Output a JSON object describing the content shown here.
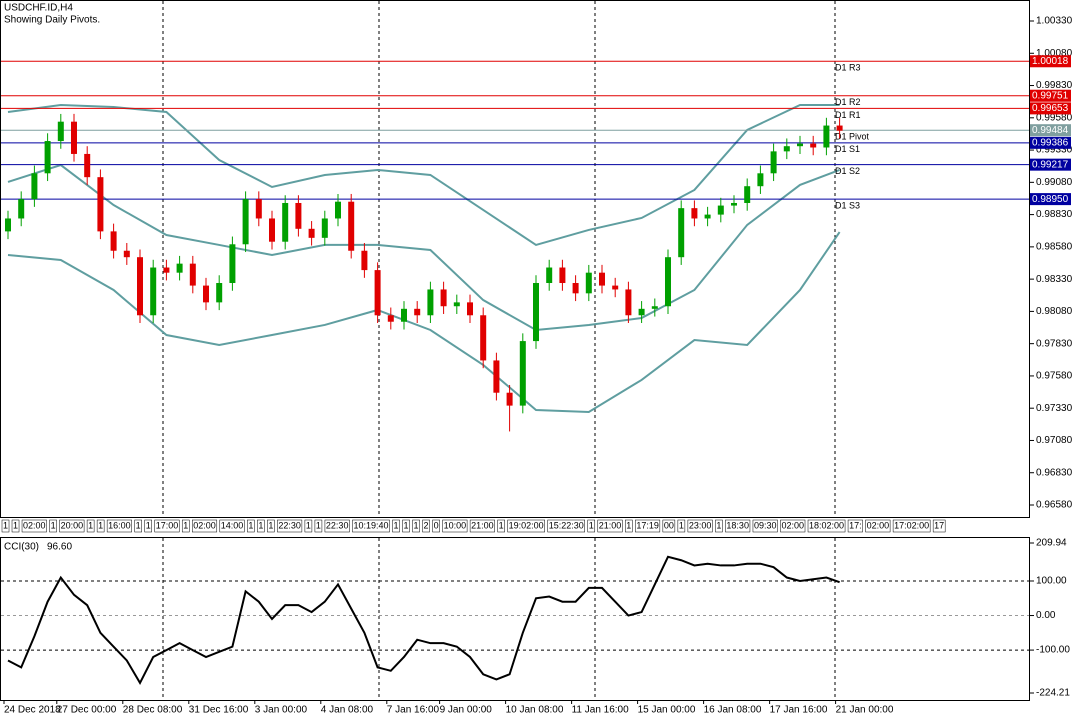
{
  "chart_data": [
    {
      "type": "candlestick",
      "title": "USDCHF.ID,H4",
      "subtitle": "Showing Daily Pivots.",
      "categories": [
        "24 Dec 2018",
        null,
        null,
        null,
        "27 Dec 00:00",
        null,
        null,
        null,
        null,
        "28 Dec 08:00",
        null,
        null,
        null,
        null,
        "31 Dec 16:00",
        null,
        null,
        null,
        null,
        "3 Jan 00:00",
        null,
        null,
        null,
        null,
        "4 Jan 08:00",
        null,
        null,
        null,
        null,
        "7 Jan 16:00",
        null,
        null,
        null,
        "9 Jan 00:00",
        null,
        null,
        null,
        null,
        "10 Jan 08:00",
        null,
        null,
        null,
        null,
        "11 Jan 16:00",
        null,
        null,
        null,
        null,
        "15 Jan 00:00",
        null,
        null,
        null,
        null,
        "16 Jan 08:00",
        null,
        null,
        null,
        null,
        "17 Jan 16:00",
        null,
        null,
        null,
        null,
        "21 Jan 00:00"
      ],
      "open": [
        0.987,
        0.988,
        0.9895,
        0.9915,
        0.994,
        0.9955,
        0.993,
        0.9912,
        0.987,
        0.9855,
        0.985,
        0.9805,
        0.9842,
        0.9838,
        0.9845,
        0.9828,
        0.9815,
        0.983,
        0.986,
        0.9895,
        0.988,
        0.9862,
        0.9892,
        0.9872,
        0.9865,
        0.988,
        0.9893,
        0.9855,
        0.984,
        0.9805,
        0.98,
        0.981,
        0.9805,
        0.9825,
        0.9812,
        0.9815,
        0.9805,
        0.977,
        0.9745,
        0.9735,
        0.9785,
        0.983,
        0.9842,
        0.983,
        0.9822,
        0.9838,
        0.9828,
        0.9825,
        0.9805,
        0.981,
        0.9812,
        0.985,
        0.9888,
        0.988,
        0.9883,
        0.989,
        0.9892,
        0.9905,
        0.9915,
        0.9932,
        0.9936,
        0.9938,
        0.9935,
        0.9952
      ],
      "high": [
        0.9886,
        0.9901,
        0.9921,
        0.9946,
        0.9961,
        0.9961,
        0.9936,
        0.9918,
        0.9876,
        0.9861,
        0.9856,
        0.9848,
        0.9848,
        0.9851,
        0.9851,
        0.9834,
        0.9836,
        0.9866,
        0.9901,
        0.9901,
        0.9886,
        0.9898,
        0.9898,
        0.9878,
        0.9886,
        0.9899,
        0.9899,
        0.9861,
        0.9846,
        0.9811,
        0.9816,
        0.9816,
        0.9831,
        0.9831,
        0.9821,
        0.9821,
        0.9811,
        0.9776,
        0.9751,
        0.9791,
        0.9836,
        0.9848,
        0.9848,
        0.9836,
        0.9844,
        0.9844,
        0.9834,
        0.9831,
        0.9816,
        0.9818,
        0.9856,
        0.9894,
        0.9894,
        0.9889,
        0.9896,
        0.9898,
        0.9911,
        0.9921,
        0.9938,
        0.9942,
        0.9944,
        0.9944,
        0.9958,
        0.9958
      ],
      "low": [
        0.9864,
        0.9874,
        0.9889,
        0.9909,
        0.9934,
        0.9924,
        0.9906,
        0.9864,
        0.9849,
        0.9844,
        0.9799,
        0.9799,
        0.9832,
        0.9832,
        0.9822,
        0.9809,
        0.9809,
        0.9824,
        0.9854,
        0.9874,
        0.9856,
        0.9856,
        0.9866,
        0.9859,
        0.9859,
        0.9874,
        0.9849,
        0.9834,
        0.9799,
        0.9794,
        0.9794,
        0.9799,
        0.9799,
        0.9806,
        0.9806,
        0.9799,
        0.9764,
        0.9739,
        0.9715,
        0.9729,
        0.9779,
        0.9824,
        0.9824,
        0.9816,
        0.9816,
        0.9822,
        0.9819,
        0.9799,
        0.9799,
        0.9804,
        0.9806,
        0.9844,
        0.9874,
        0.9874,
        0.9877,
        0.9884,
        0.9886,
        0.9899,
        0.9909,
        0.9926,
        0.993,
        0.9929,
        0.9929,
        0.9942
      ],
      "close": [
        0.988,
        0.9895,
        0.9915,
        0.994,
        0.9955,
        0.993,
        0.9912,
        0.987,
        0.9855,
        0.985,
        0.9805,
        0.9842,
        0.9838,
        0.9845,
        0.9828,
        0.9815,
        0.983,
        0.986,
        0.9895,
        0.988,
        0.9862,
        0.9892,
        0.9872,
        0.9865,
        0.988,
        0.9893,
        0.9855,
        0.984,
        0.9805,
        0.98,
        0.981,
        0.9805,
        0.9825,
        0.9812,
        0.9815,
        0.9805,
        0.977,
        0.9745,
        0.9735,
        0.9785,
        0.983,
        0.9842,
        0.983,
        0.9822,
        0.9838,
        0.9828,
        0.9825,
        0.9805,
        0.981,
        0.9812,
        0.985,
        0.9888,
        0.988,
        0.9883,
        0.989,
        0.9892,
        0.9905,
        0.9915,
        0.9932,
        0.9936,
        0.9938,
        0.9935,
        0.9952,
        0.9948
      ],
      "up_color": "#00a000",
      "down_color": "#e00000",
      "ylim": [
        0.96487,
        1.00454
      ],
      "yticks": [
        {
          "value": 1.0033,
          "label": "1.00330"
        },
        {
          "value": 1.0008,
          "label": "1.00080"
        },
        {
          "value": 0.9983,
          "label": "0.99830"
        },
        {
          "value": 0.9958,
          "label": "0.99580"
        },
        {
          "value": 0.9933,
          "label": "0.99330"
        },
        {
          "value": 0.9908,
          "label": "0.99080"
        },
        {
          "value": 0.9883,
          "label": "0.98830"
        },
        {
          "value": 0.9858,
          "label": "0.98580"
        },
        {
          "value": 0.9833,
          "label": "0.98330"
        },
        {
          "value": 0.9808,
          "label": "0.98080"
        },
        {
          "value": 0.9783,
          "label": "0.97830"
        },
        {
          "value": 0.9758,
          "label": "0.97580"
        },
        {
          "value": 0.9733,
          "label": "0.97330"
        },
        {
          "value": 0.9708,
          "label": "0.97080"
        },
        {
          "value": 0.9683,
          "label": "0.96830"
        },
        {
          "value": 0.9658,
          "label": "0.96580"
        }
      ],
      "bands": {
        "color": "#5f9ea0",
        "x": [
          0,
          4,
          8,
          12,
          16,
          20,
          24,
          28,
          32,
          36,
          40,
          44,
          48,
          52,
          56,
          60,
          63
        ],
        "series": [
          {
            "values": [
              0.99625,
              0.99679,
              0.99664,
              0.99625,
              0.99253,
              0.99044,
              0.99137,
              0.99176,
              0.99137,
              0.98866,
              0.98595,
              0.98711,
              0.98804,
              0.99021,
              0.99486,
              0.99679,
              0.99679
            ]
          },
          {
            "values": [
              0.99083,
              0.99214,
              0.98904,
              0.98672,
              0.98595,
              0.98517,
              0.98595,
              0.98595,
              0.98556,
              0.98168,
              0.97936,
              0.97975,
              0.98029,
              0.98246,
              0.9875,
              0.9906,
              0.99176
            ]
          },
          {
            "values": [
              0.98517,
              0.98478,
              0.98246,
              0.97897,
              0.9782,
              0.97897,
              0.97975,
              0.98091,
              0.97936,
              0.97665,
              0.97316,
              0.97301,
              0.97549,
              0.97858,
              0.9782,
              0.98246,
              0.98695
            ]
          }
        ]
      },
      "pivots": [
        {
          "name": "D1 R3",
          "value": 1.00018,
          "label": "1.00018",
          "color": "#e00000"
        },
        {
          "name": "D1 R2",
          "value": 0.99751,
          "label": "0.99751",
          "color": "#e00000"
        },
        {
          "name": "D1 R1",
          "value": 0.99653,
          "label": "0.99653",
          "color": "#e00000"
        },
        {
          "name": "D1 Pivot",
          "value": 0.99484,
          "label": "0.99484",
          "color": "#7f9f9f"
        },
        {
          "name": "D1 S1",
          "value": 0.99386,
          "label": "0.99386",
          "color": "#0000a0"
        },
        {
          "name": "D1 S2",
          "value": 0.99217,
          "label": "0.99217",
          "color": "#0000a0"
        },
        {
          "name": "D1 S3",
          "value": 0.9895,
          "label": "0.98950",
          "color": "#0000a0"
        }
      ],
      "time_strip": [
        "1",
        "1",
        "02:00",
        "1",
        "20:00",
        "1",
        "1",
        "16:00",
        "1",
        "1",
        "17:00",
        "1",
        "02:00",
        "14:00",
        "1",
        "1",
        "1",
        "22:30",
        "1",
        "1",
        "22:30",
        "10:19:40",
        "1",
        "1",
        "1",
        "2",
        "0",
        "10:00",
        "21:00",
        "1",
        "19:02:00",
        "15:22:30",
        "1",
        "21:00",
        "1",
        "17:19",
        "00",
        "1",
        "23:00",
        "1",
        "18:30",
        "09:30",
        "02:00",
        "18:02:00",
        "17:",
        "02:00",
        "17:02:00",
        "17"
      ]
    },
    {
      "type": "line",
      "title": "CCI(30)",
      "current": {
        "value": 96.6,
        "label": "96.60"
      },
      "color": "#000000",
      "values": [
        -130,
        -150,
        -60,
        40,
        110,
        60,
        30,
        -50,
        -90,
        -130,
        -195,
        -120,
        -100,
        -80,
        -100,
        -120,
        -105,
        -90,
        70,
        40,
        -10,
        30,
        30,
        10,
        40,
        90,
        20,
        -50,
        -150,
        -160,
        -120,
        -70,
        -80,
        -80,
        -90,
        -120,
        -170,
        -185,
        -170,
        -50,
        50,
        55,
        40,
        40,
        80,
        80,
        40,
        0,
        10,
        90,
        170,
        160,
        145,
        150,
        145,
        145,
        150,
        150,
        140,
        110,
        100,
        105,
        110,
        96.6
      ],
      "ylim": [
        -224.21,
        209.94
      ],
      "yticks": [
        209.94,
        {
          "value": 100,
          "label": "100.00"
        },
        {
          "value": 0,
          "label": "0.00"
        },
        {
          "value": -100,
          "label": "-100.00"
        },
        -224.21
      ],
      "grid": true
    }
  ]
}
